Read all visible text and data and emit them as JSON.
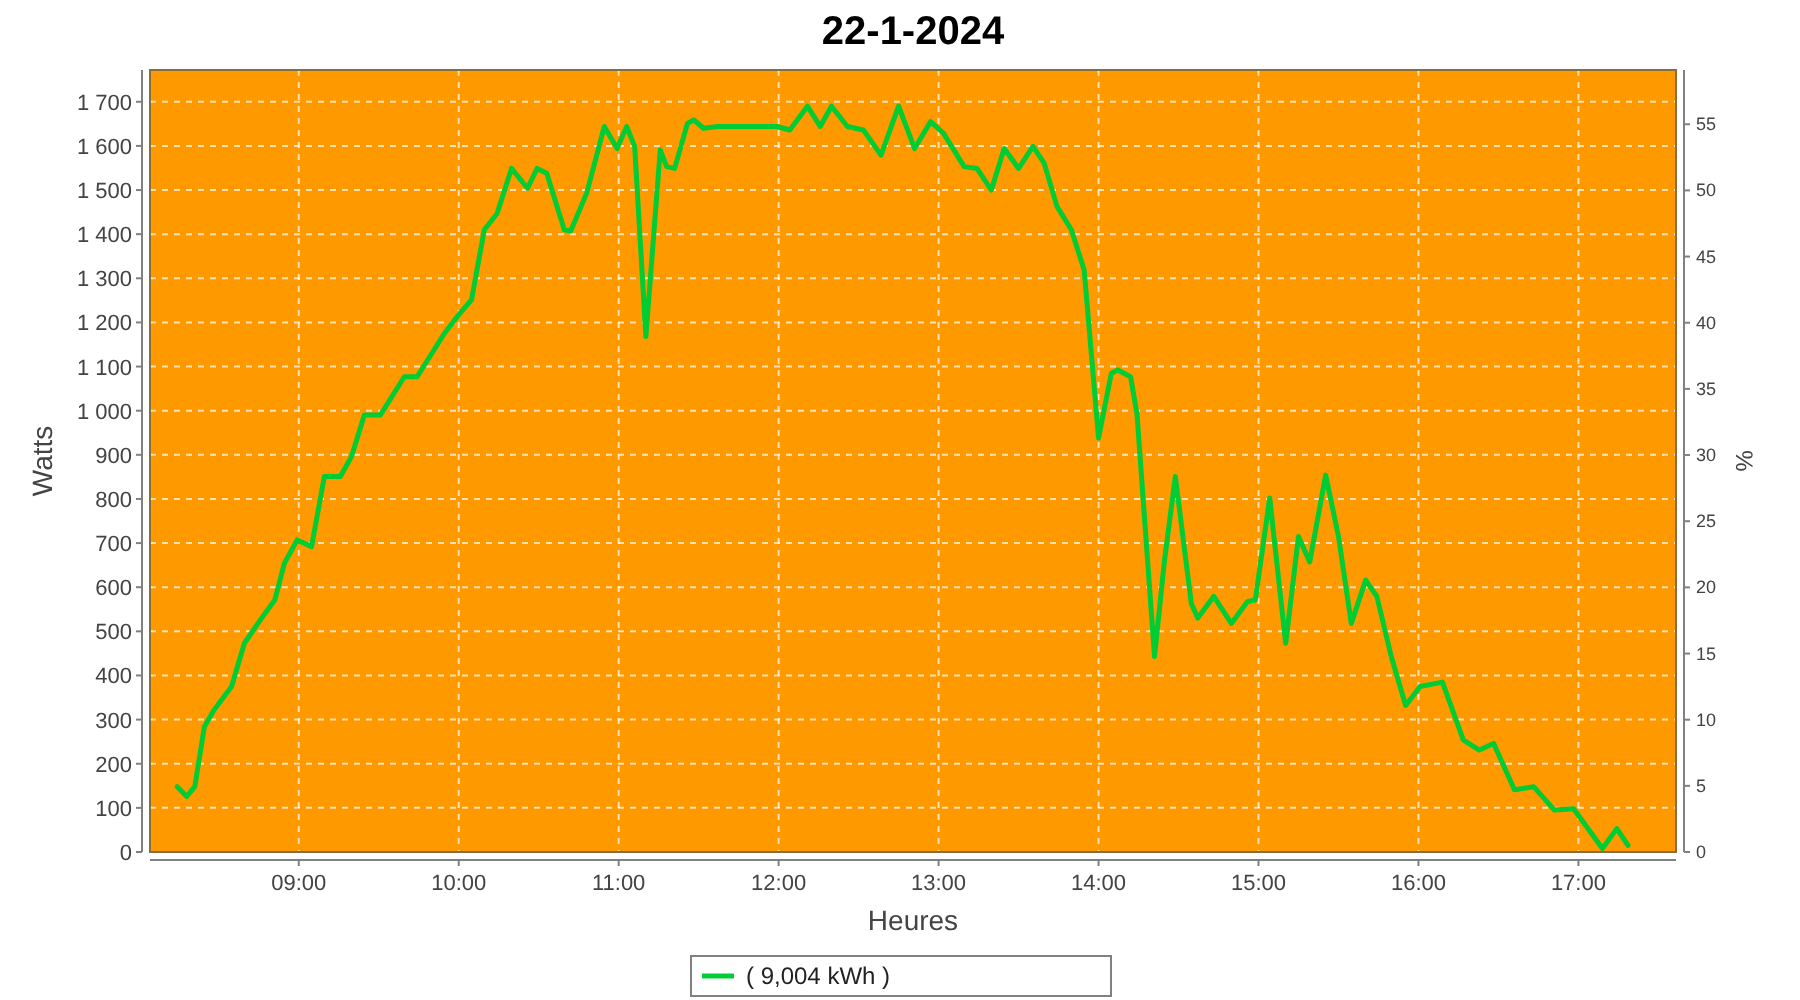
{
  "chart_data": {
    "type": "line",
    "title": "22-1-2024",
    "xlabel": "Heures",
    "ylabel": "Watts",
    "y2label": "%",
    "x": [
      8.24,
      8.3,
      8.35,
      8.41,
      8.47,
      8.58,
      8.66,
      8.76,
      8.85,
      8.91,
      8.99,
      9.08,
      9.16,
      9.26,
      9.33,
      9.41,
      9.51,
      9.66,
      9.74,
      9.91,
      9.99,
      10.08,
      10.16,
      10.24,
      10.33,
      10.43,
      10.49,
      10.55,
      10.66,
      10.7,
      10.8,
      10.91,
      10.99,
      11.05,
      11.1,
      11.17,
      11.26,
      11.3,
      11.35,
      11.43,
      11.47,
      11.53,
      11.62,
      11.83,
      11.99,
      12.07,
      12.18,
      12.26,
      12.33,
      12.43,
      12.53,
      12.64,
      12.75,
      12.85,
      12.95,
      13.03,
      13.16,
      13.24,
      13.33,
      13.41,
      13.5,
      13.59,
      13.66,
      13.74,
      13.83,
      13.91,
      14.0,
      14.08,
      14.12,
      14.2,
      14.24,
      14.35,
      14.41,
      14.48,
      14.58,
      14.62,
      14.72,
      14.83,
      14.93,
      14.98,
      15.07,
      15.17,
      15.25,
      15.32,
      15.42,
      15.5,
      15.58,
      15.67,
      15.74,
      15.83,
      15.92,
      16.01,
      16.15,
      16.28,
      16.38,
      16.47,
      16.6,
      16.72,
      16.85,
      16.97,
      17.15,
      17.24,
      17.31
    ],
    "series": [
      {
        "name": "( 9,004 kWh )",
        "color": "#00cc33",
        "values": [
          148,
          126,
          148,
          284,
          322,
          375,
          473,
          526,
          571,
          654,
          707,
          692,
          851,
          851,
          896,
          990,
          990,
          1077,
          1077,
          1175,
          1213,
          1251,
          1410,
          1447,
          1549,
          1504,
          1549,
          1538,
          1410,
          1407,
          1493,
          1644,
          1594,
          1644,
          1599,
          1168,
          1591,
          1553,
          1549,
          1651,
          1659,
          1640,
          1644,
          1644,
          1644,
          1636,
          1690,
          1644,
          1690,
          1644,
          1636,
          1579,
          1690,
          1594,
          1655,
          1629,
          1553,
          1549,
          1500,
          1594,
          1549,
          1599,
          1561,
          1463,
          1410,
          1319,
          938,
          1085,
          1092,
          1077,
          994,
          443,
          654,
          851,
          563,
          530,
          579,
          518,
          567,
          571,
          802,
          473,
          715,
          657,
          854,
          715,
          518,
          616,
          579,
          443,
          332,
          375,
          385,
          254,
          231,
          246,
          141,
          148,
          95,
          98,
          8,
          53,
          15
        ]
      }
    ],
    "xlim": [
      8.07,
      17.61
    ],
    "xticks": [
      {
        "value": 9,
        "label": "09:00"
      },
      {
        "value": 10,
        "label": "10:00"
      },
      {
        "value": 11,
        "label": "11:00"
      },
      {
        "value": 12,
        "label": "12:00"
      },
      {
        "value": 13,
        "label": "13:00"
      },
      {
        "value": 14,
        "label": "14:00"
      },
      {
        "value": 15,
        "label": "15:00"
      },
      {
        "value": 16,
        "label": "16:00"
      },
      {
        "value": 17,
        "label": "17:00"
      }
    ],
    "ylim": [
      0,
      1772
    ],
    "yticks": [
      0,
      100,
      200,
      300,
      400,
      500,
      600,
      700,
      800,
      900,
      {
        "value": 1000,
        "label": "1 000"
      },
      {
        "value": 1100,
        "label": "1 100"
      },
      {
        "value": 1200,
        "label": "1 200"
      },
      {
        "value": 1300,
        "label": "1 300"
      },
      {
        "value": 1400,
        "label": "1 400"
      },
      {
        "value": 1500,
        "label": "1 500"
      },
      {
        "value": 1600,
        "label": "1 600"
      },
      {
        "value": 1700,
        "label": "1 700"
      }
    ],
    "y2lim": [
      0,
      59.1
    ],
    "y2ticks": [
      0,
      5,
      10,
      15,
      20,
      25,
      30,
      35,
      40,
      45,
      50,
      55
    ],
    "grid": true,
    "legend": "bottom",
    "marker": "none",
    "line_style": "solid"
  }
}
